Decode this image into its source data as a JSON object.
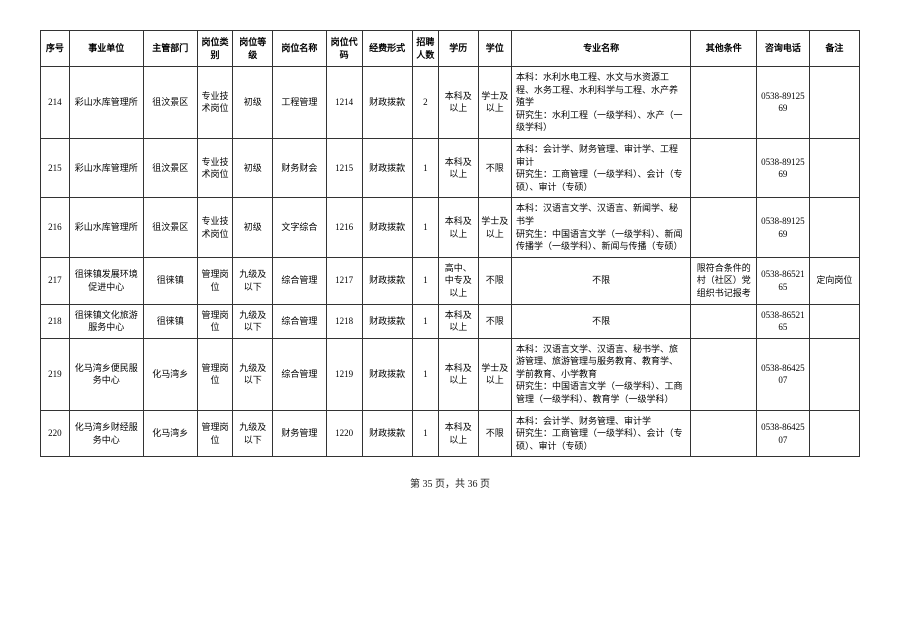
{
  "columns": [
    "序号",
    "事业单位",
    "主管部门",
    "岗位类别",
    "岗位等级",
    "岗位名称",
    "岗位代码",
    "经费形式",
    "招聘人数",
    "学历",
    "学位",
    "专业名称",
    "其他条件",
    "咨询电话",
    "备注"
  ],
  "rows": [
    {
      "seq": "214",
      "unit": "彩山水库管理所",
      "dept": "徂汶景区",
      "cat": "专业技术岗位",
      "level": "初级",
      "name": "工程管理",
      "code": "1214",
      "fund": "财政拨款",
      "num": "2",
      "edu": "本科及以上",
      "deg": "学士及以上",
      "major": "本科：水利水电工程、水文与水资源工程、水务工程、水利科学与工程、水产养殖学\n研究生：水利工程（一级学科）、水产（一级学科）",
      "other": "",
      "phone": "0538-8912569",
      "remark": ""
    },
    {
      "seq": "215",
      "unit": "彩山水库管理所",
      "dept": "徂汶景区",
      "cat": "专业技术岗位",
      "level": "初级",
      "name": "财务财会",
      "code": "1215",
      "fund": "财政拨款",
      "num": "1",
      "edu": "本科及以上",
      "deg": "不限",
      "major": "本科：会计学、财务管理、审计学、工程审计\n研究生：工商管理（一级学科）、会计（专硕）、审计（专硕）",
      "other": "",
      "phone": "0538-8912569",
      "remark": ""
    },
    {
      "seq": "216",
      "unit": "彩山水库管理所",
      "dept": "徂汶景区",
      "cat": "专业技术岗位",
      "level": "初级",
      "name": "文字综合",
      "code": "1216",
      "fund": "财政拨款",
      "num": "1",
      "edu": "本科及以上",
      "deg": "学士及以上",
      "major": "本科：汉语言文学、汉语言、新闻学、秘书学\n研究生：中国语言文学（一级学科）、新闻传播学（一级学科）、新闻与传播（专硕）",
      "other": "",
      "phone": "0538-8912569",
      "remark": ""
    },
    {
      "seq": "217",
      "unit": "徂徕镇发展环境促进中心",
      "dept": "徂徕镇",
      "cat": "管理岗位",
      "level": "九级及以下",
      "name": "综合管理",
      "code": "1217",
      "fund": "财政拨款",
      "num": "1",
      "edu": "高中、中专及以上",
      "deg": "不限",
      "major": "不限",
      "other": "限符合条件的村（社区）党组织书记报考",
      "phone": "0538-8652165",
      "remark": "定向岗位"
    },
    {
      "seq": "218",
      "unit": "徂徕镇文化旅游服务中心",
      "dept": "徂徕镇",
      "cat": "管理岗位",
      "level": "九级及以下",
      "name": "综合管理",
      "code": "1218",
      "fund": "财政拨款",
      "num": "1",
      "edu": "本科及以上",
      "deg": "不限",
      "major": "不限",
      "other": "",
      "phone": "0538-8652165",
      "remark": ""
    },
    {
      "seq": "219",
      "unit": "化马湾乡便民服务中心",
      "dept": "化马湾乡",
      "cat": "管理岗位",
      "level": "九级及以下",
      "name": "综合管理",
      "code": "1219",
      "fund": "财政拨款",
      "num": "1",
      "edu": "本科及以上",
      "deg": "学士及以上",
      "major": "本科：汉语言文学、汉语言、秘书学、旅游管理、旅游管理与服务教育、教育学、学前教育、小学教育\n研究生：中国语言文学（一级学科）、工商管理（一级学科）、教育学（一级学科）",
      "other": "",
      "phone": "0538-8642507",
      "remark": ""
    },
    {
      "seq": "220",
      "unit": "化马湾乡财经服务中心",
      "dept": "化马湾乡",
      "cat": "管理岗位",
      "level": "九级及以下",
      "name": "财务管理",
      "code": "1220",
      "fund": "财政拨款",
      "num": "1",
      "edu": "本科及以上",
      "deg": "不限",
      "major": "本科：会计学、财务管理、审计学\n研究生：工商管理（一级学科）、会计（专硕）、审计（专硕）",
      "other": "",
      "phone": "0538-8642507",
      "remark": ""
    }
  ],
  "pagination": "第 35 页，共 36 页"
}
